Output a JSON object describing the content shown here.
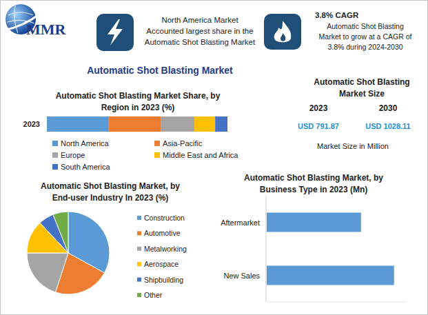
{
  "header": {
    "logo": "MMR",
    "highlight": [
      "North America Market",
      "Accounted largest share in the",
      "Automatic Shot Blasting Market"
    ],
    "cagr_title": "3.8% CAGR",
    "cagr_text": [
      "Automatic Shot Blasting",
      "Market to grow at a CAGR of",
      "3.8% during 2024-2030"
    ]
  },
  "title": "Automatic Shot Blasting Market",
  "market_size": {
    "title": [
      "Automatic Shot Blasting",
      "Market Size"
    ],
    "years": [
      "2023",
      "2030"
    ],
    "values": [
      "USD 791.87",
      "USD 1028.11"
    ],
    "unit_note": "Market Size in Million"
  },
  "chart_data": [
    {
      "type": "bar",
      "title": [
        "Automatic Shot Blasting Market Share, by",
        "Region in 2023 (%)"
      ],
      "orientation": "horizontal",
      "stacked": true,
      "categories": [
        "2023"
      ],
      "series": [
        {
          "name": "North America",
          "color": "#5b9bd5",
          "values": [
            34
          ]
        },
        {
          "name": "Asia-Pacific",
          "color": "#ed7d31",
          "values": [
            29
          ]
        },
        {
          "name": "Europe",
          "color": "#a5a5a5",
          "values": [
            18.7
          ]
        },
        {
          "name": "Middle East and Africa",
          "color": "#ffc000",
          "values": [
            11.5
          ]
        },
        {
          "name": "South America",
          "color": "#4472c4",
          "values": [
            6.8
          ]
        }
      ],
      "xlim": [
        0,
        100
      ],
      "xticks": [],
      "tick_labels": "y",
      "legend": "bottom",
      "grid": false,
      "data_labels": false
    },
    {
      "type": "pie",
      "title": [
        "Automatic Shot Blasting Market, by",
        "End-user Industry In 2023 (%)"
      ],
      "categories": [
        "Construction",
        "Automotive",
        "Metalworking",
        "Aerospace",
        "Shipbuilding",
        "Other"
      ],
      "values": [
        33,
        22,
        20,
        13,
        6,
        6
      ],
      "colors": [
        "#5b9bd5",
        "#ed7d31",
        "#a5a5a5",
        "#ffc000",
        "#4472c4",
        "#70ad47"
      ],
      "legend": "right",
      "data_labels": false
    },
    {
      "type": "bar",
      "title": [
        "Automatic Shot Blasting Market, by",
        "Business Type in 2023 (Mn)"
      ],
      "orientation": "horizontal",
      "categories": [
        "Aftermarket",
        "New Sales"
      ],
      "values": [
        337,
        455
      ],
      "color": "#5b9bd5",
      "xlim": [
        0,
        500
      ],
      "xticks": [],
      "tick_labels": "y",
      "grid": false,
      "data_labels": false
    }
  ]
}
